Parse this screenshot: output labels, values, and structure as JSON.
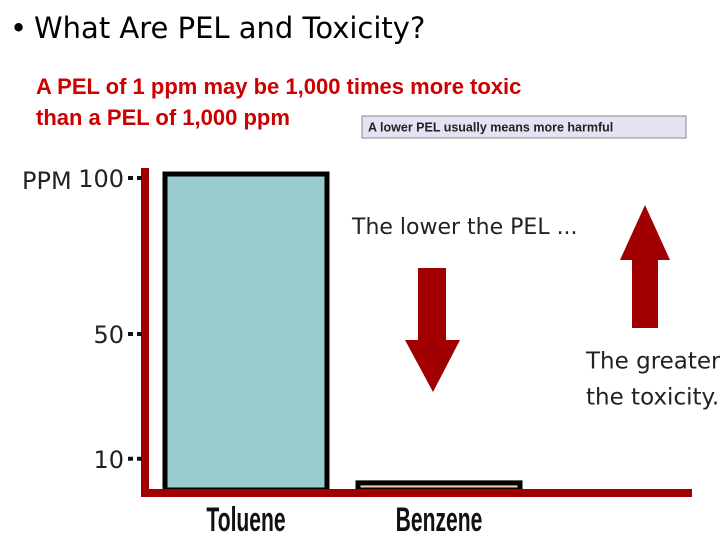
{
  "chart_data": {
    "type": "bar",
    "title": "What Are PEL and Toxicity?",
    "subtitle": [
      "A PEL of 1 ppm may be 1,000 times more toxic",
      "than a PEL of 1,000 ppm"
    ],
    "note": "A lower PEL usually means more harmful",
    "y_label": "PPM",
    "annotations": [
      "The lower the PEL ...",
      "The greater",
      "the toxicity."
    ],
    "categories": [
      "Toluene",
      "Benzene"
    ],
    "values": [
      100,
      1
    ],
    "colors": [
      "#99cccc",
      "#f7cba8"
    ],
    "ylim": [
      0,
      100
    ],
    "yticks": [
      100,
      50,
      10
    ]
  }
}
